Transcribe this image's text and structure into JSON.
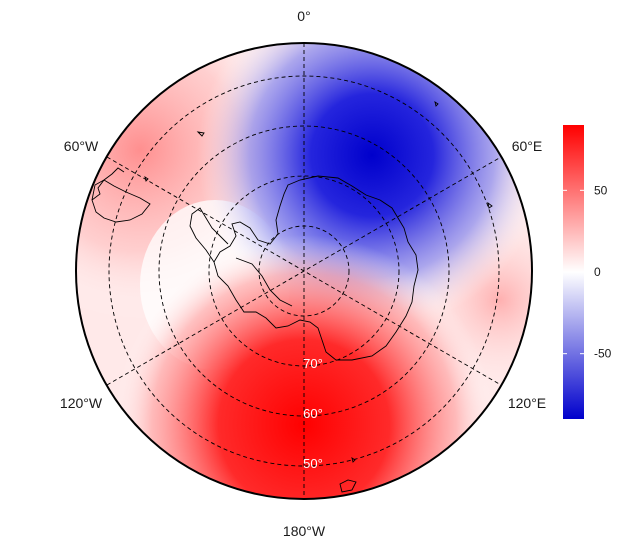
{
  "chart_data": {
    "type": "heatmap",
    "projection": "south-polar stereographic",
    "title": "",
    "meridian_labels": [
      "0°",
      "60°E",
      "120°E",
      "180°W",
      "120°W",
      "60°W"
    ],
    "latitude_labels": [
      "70°",
      "60°",
      "50°"
    ],
    "graticule": "dashed",
    "colorbar": {
      "range": [
        -90,
        90
      ],
      "ticks": [
        50,
        0,
        -50
      ],
      "tick_labels": [
        "50",
        "0",
        "-50"
      ],
      "colors": {
        "low": "#0000cc",
        "mid": "#ffffff",
        "high": "#ff0000"
      }
    },
    "field": {
      "high_center": {
        "lon": "180°",
        "lat": -60,
        "value": 85
      },
      "low_center": {
        "lon": "45°E",
        "lat": -55,
        "value": -80
      },
      "secondary_high": {
        "lon": "60°W",
        "lat": -50,
        "value": 30
      }
    }
  }
}
